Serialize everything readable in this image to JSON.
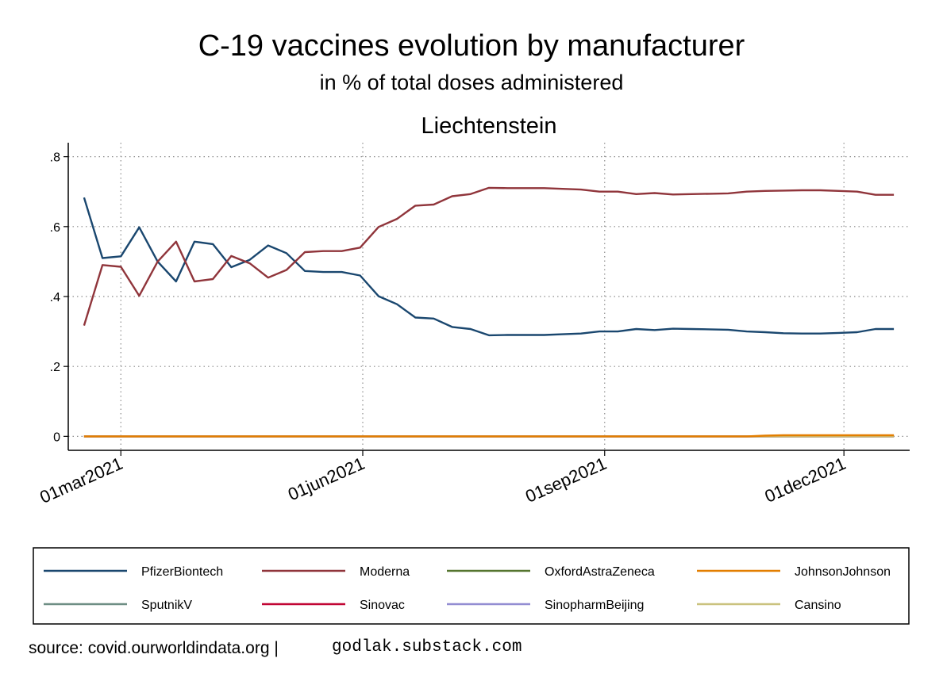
{
  "chart_data": {
    "type": "line",
    "title": "C-19 vaccines evolution by manufacturer",
    "subtitle": "in % of total doses administered",
    "panel_title": "Liechtenstein",
    "ylim": [
      -0.04,
      0.84
    ],
    "yticks": [
      0,
      0.2,
      0.4,
      0.6,
      0.8
    ],
    "ytick_labels": [
      "0",
      ".2",
      ".4",
      ".6",
      ".8"
    ],
    "xlim": [
      "2021-02-09",
      "2021-12-26"
    ],
    "xticks": [
      "2021-03-01",
      "2021-06-01",
      "2021-09-01",
      "2021-12-01"
    ],
    "xtick_labels": [
      "01mar2021",
      "01jun2021",
      "01sep2021",
      "01dec2021"
    ],
    "grid": true,
    "legend_position": "bottom",
    "x": [
      "2021-02-15",
      "2021-02-22",
      "2021-03-01",
      "2021-03-08",
      "2021-03-15",
      "2021-03-22",
      "2021-03-29",
      "2021-04-05",
      "2021-04-12",
      "2021-04-19",
      "2021-04-26",
      "2021-05-03",
      "2021-05-10",
      "2021-05-17",
      "2021-05-24",
      "2021-05-31",
      "2021-06-07",
      "2021-06-14",
      "2021-06-21",
      "2021-06-28",
      "2021-07-05",
      "2021-07-12",
      "2021-07-19",
      "2021-07-26",
      "2021-08-02",
      "2021-08-09",
      "2021-08-16",
      "2021-08-23",
      "2021-08-30",
      "2021-09-06",
      "2021-09-13",
      "2021-09-20",
      "2021-09-27",
      "2021-10-04",
      "2021-10-11",
      "2021-10-18",
      "2021-10-25",
      "2021-11-01",
      "2021-11-08",
      "2021-11-15",
      "2021-11-22",
      "2021-11-29",
      "2021-12-06",
      "2021-12-13",
      "2021-12-20"
    ],
    "series": [
      {
        "name": "PfizerBiontech",
        "color": "#1a476f",
        "values": [
          0.683,
          0.51,
          0.515,
          0.598,
          0.5,
          0.443,
          0.557,
          0.55,
          0.484,
          0.505,
          0.546,
          0.524,
          0.473,
          0.47,
          0.47,
          0.46,
          0.401,
          0.378,
          0.34,
          0.337,
          0.313,
          0.307,
          0.289,
          0.29,
          0.29,
          0.29,
          0.292,
          0.294,
          0.3,
          0.3,
          0.307,
          0.304,
          0.308,
          0.307,
          0.306,
          0.305,
          0.3,
          0.298,
          0.295,
          0.294,
          0.294,
          0.296,
          0.298,
          0.307,
          0.307
        ]
      },
      {
        "name": "Moderna",
        "color": "#90353b",
        "values": [
          0.317,
          0.49,
          0.485,
          0.402,
          0.5,
          0.557,
          0.443,
          0.45,
          0.516,
          0.495,
          0.454,
          0.476,
          0.527,
          0.53,
          0.53,
          0.54,
          0.599,
          0.622,
          0.66,
          0.663,
          0.687,
          0.693,
          0.711,
          0.71,
          0.71,
          0.71,
          0.708,
          0.706,
          0.7,
          0.7,
          0.693,
          0.696,
          0.692,
          0.693,
          0.694,
          0.695,
          0.7,
          0.702,
          0.703,
          0.704,
          0.704,
          0.702,
          0.7,
          0.691,
          0.691
        ]
      },
      {
        "name": "OxfordAstraZeneca",
        "color": "#55752f",
        "values": [
          0,
          0,
          0,
          0,
          0,
          0,
          0,
          0,
          0,
          0,
          0,
          0,
          0,
          0,
          0,
          0,
          0,
          0,
          0,
          0,
          0,
          0,
          0,
          0,
          0,
          0,
          0,
          0,
          0,
          0,
          0,
          0,
          0,
          0,
          0,
          0,
          0,
          0,
          0,
          0,
          0,
          0,
          0,
          0,
          0
        ]
      },
      {
        "name": "JohnsonJohnson",
        "color": "#e37e00",
        "values": [
          0,
          0,
          0,
          0,
          0,
          0,
          0,
          0,
          0,
          0,
          0,
          0,
          0,
          0,
          0,
          0,
          0,
          0,
          0,
          0,
          0,
          0,
          0,
          0,
          0,
          0,
          0,
          0,
          0,
          0,
          0,
          0,
          0,
          0,
          0,
          0,
          0,
          0.002,
          0.003,
          0.003,
          0.003,
          0.003,
          0.003,
          0.003,
          0.003
        ]
      },
      {
        "name": "SputnikV",
        "color": "#6e8e84",
        "values": [
          0,
          0,
          0,
          0,
          0,
          0,
          0,
          0,
          0,
          0,
          0,
          0,
          0,
          0,
          0,
          0,
          0,
          0,
          0,
          0,
          0,
          0,
          0,
          0,
          0,
          0,
          0,
          0,
          0,
          0,
          0,
          0,
          0,
          0,
          0,
          0,
          0,
          0,
          0,
          0,
          0,
          0,
          0,
          0,
          0
        ]
      },
      {
        "name": "Sinovac",
        "color": "#c10534",
        "values": [
          0,
          0,
          0,
          0,
          0,
          0,
          0,
          0,
          0,
          0,
          0,
          0,
          0,
          0,
          0,
          0,
          0,
          0,
          0,
          0,
          0,
          0,
          0,
          0,
          0,
          0,
          0,
          0,
          0,
          0,
          0,
          0,
          0,
          0,
          0,
          0,
          0,
          0,
          0,
          0,
          0,
          0,
          0,
          0,
          0
        ]
      },
      {
        "name": "SinopharmBeijing",
        "color": "#938dd2",
        "values": [
          0,
          0,
          0,
          0,
          0,
          0,
          0,
          0,
          0,
          0,
          0,
          0,
          0,
          0,
          0,
          0,
          0,
          0,
          0,
          0,
          0,
          0,
          0,
          0,
          0,
          0,
          0,
          0,
          0,
          0,
          0,
          0,
          0,
          0,
          0,
          0,
          0,
          0,
          0,
          0,
          0,
          0,
          0,
          0,
          0
        ]
      },
      {
        "name": "Cansino",
        "color": "#cac27e",
        "values": [
          0,
          0,
          0,
          0,
          0,
          0,
          0,
          0,
          0,
          0,
          0,
          0,
          0,
          0,
          0,
          0,
          0,
          0,
          0,
          0,
          0,
          0,
          0,
          0,
          0,
          0,
          0,
          0,
          0,
          0,
          0,
          0,
          0,
          0,
          0,
          0,
          0,
          0,
          0,
          0,
          0,
          0,
          0,
          0,
          0
        ]
      }
    ]
  },
  "footer": {
    "source": "source: covid.ourworldindata.org |",
    "site": "godlak.substack.com"
  }
}
